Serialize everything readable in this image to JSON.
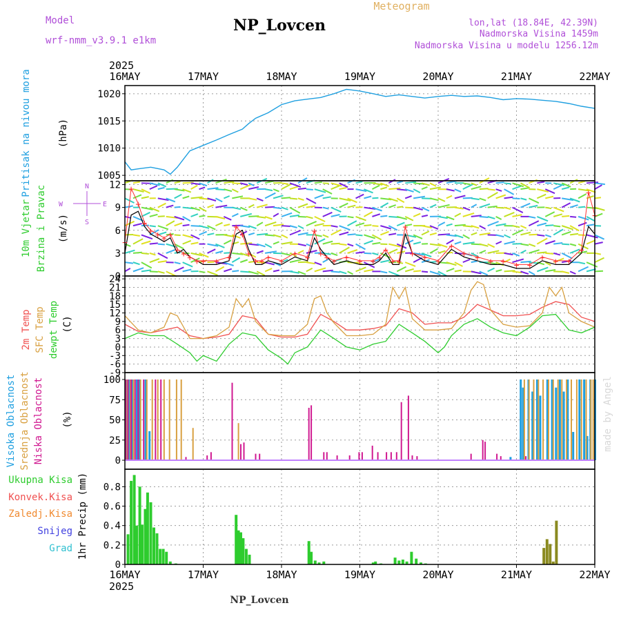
{
  "header": {
    "model_label": "Model",
    "model_name": "wrf-nmm_v3.9.1 e1km",
    "station": "NP_Lovcen",
    "product": "Meteogram",
    "coords": "lon,lat (18.84E, 42.39N)",
    "elevation": "Nadmorska Visina 1459m",
    "model_elevation": "Nadmorska Visina u modelu 1256.12m",
    "year_top": "2025",
    "year_bottom": "2025",
    "footer": "NP_Lovcen",
    "credit": "made by Angel"
  },
  "colors": {
    "pressure": "#1e9fe0",
    "green": "#2ecc2e",
    "orange": "#d8a040",
    "red": "#f05050",
    "magenta": "#d01890",
    "blue": "#4040e0",
    "cyan": "#30c0d0",
    "olive": "#8a8a20",
    "purple": "#b04fd8",
    "grid": "#9a9a9a"
  },
  "chart_data": [
    {
      "type": "line",
      "panel": "pressure",
      "ylabel": [
        "Pritisak na nivou mora",
        "(hPa)"
      ],
      "x_labels": [
        "16MAY",
        "17MAY",
        "18MAY",
        "19MAY",
        "20MAY",
        "21MAY",
        "22MAY"
      ],
      "ylim": [
        1004,
        1021.5
      ],
      "yticks": [
        1005,
        1010,
        1015,
        1020
      ],
      "grid": true,
      "series": [
        {
          "x_days": [
            0,
            0.08,
            0.17,
            0.33,
            0.5,
            0.58,
            0.67,
            0.83,
            1,
            1.17,
            1.33,
            1.5,
            1.58,
            1.67,
            1.83,
            2,
            2.17,
            2.33,
            2.5,
            2.67,
            2.83,
            3,
            3.17,
            3.33,
            3.5,
            3.67,
            3.83,
            4,
            4.17,
            4.33,
            4.5,
            4.67,
            4.83,
            5,
            5.17,
            5.33,
            5.5,
            5.67,
            5.83,
            6
          ],
          "values": [
            1007.5,
            1006,
            1006.2,
            1006.5,
            1006,
            1005.2,
            1006.5,
            1009.5,
            1010.5,
            1011.5,
            1012.5,
            1013.5,
            1014.5,
            1015.5,
            1016.5,
            1018,
            1018.7,
            1019,
            1019.3,
            1020,
            1020.8,
            1020.5,
            1020,
            1019.5,
            1019.8,
            1019.5,
            1019.2,
            1019.5,
            1019.7,
            1019.5,
            1019.6,
            1019.3,
            1018.9,
            1019.1,
            1019,
            1018.8,
            1018.6,
            1018.2,
            1017.7,
            1017.3
          ]
        }
      ]
    },
    {
      "type": "line",
      "panel": "wind",
      "ylabel": [
        "10m Vjetar",
        "Brzina i Pravac",
        "(m/s)"
      ],
      "compass": [
        "N",
        "E",
        "S",
        "W"
      ],
      "ylim": [
        0,
        12.5
      ],
      "yticks": [
        0,
        3,
        6,
        9,
        12
      ],
      "grid": true,
      "series": [
        {
          "x_days": [
            0,
            0.08,
            0.17,
            0.25,
            0.33,
            0.42,
            0.5,
            0.58,
            0.67,
            0.75,
            0.83,
            0.92,
            1,
            1.17,
            1.33,
            1.42,
            1.5,
            1.58,
            1.67,
            1.75,
            1.83,
            2,
            2.17,
            2.33,
            2.42,
            2.5,
            2.58,
            2.67,
            2.83,
            3,
            3.17,
            3.25,
            3.33,
            3.42,
            3.5,
            3.58,
            3.67,
            3.83,
            4,
            4.17,
            4.33,
            4.5,
            4.67,
            4.83,
            5,
            5.17,
            5.33,
            5.5,
            5.67,
            5.83,
            5.92,
            6
          ],
          "values": [
            3,
            8,
            8.5,
            6.5,
            5.5,
            5,
            4.5,
            5,
            3,
            3.5,
            2.5,
            2,
            1.5,
            1.5,
            2,
            5.5,
            6,
            3.5,
            1.5,
            1.5,
            2,
            1.5,
            2.5,
            2,
            5,
            3.5,
            2.5,
            1.5,
            2,
            1.5,
            1.5,
            2,
            3,
            1.5,
            1.5,
            5.5,
            3,
            2,
            1.5,
            3.5,
            2.5,
            2,
            1.5,
            1.5,
            1,
            1,
            2,
            1.5,
            1.5,
            3,
            6.5,
            5.5
          ]
        },
        {
          "x_days": [
            0,
            0.08,
            0.17,
            0.25,
            0.33,
            0.42,
            0.5,
            0.58,
            0.67,
            0.75,
            0.83,
            0.92,
            1,
            1.17,
            1.33,
            1.42,
            1.5,
            1.58,
            1.67,
            1.75,
            1.83,
            2,
            2.17,
            2.33,
            2.42,
            2.5,
            2.58,
            2.67,
            2.83,
            3,
            3.17,
            3.25,
            3.33,
            3.42,
            3.5,
            3.58,
            3.67,
            3.83,
            4,
            4.17,
            4.33,
            4.5,
            4.67,
            4.83,
            5,
            5.17,
            5.33,
            5.5,
            5.67,
            5.83,
            5.92,
            6
          ],
          "values": [
            4.5,
            11.5,
            9.5,
            7,
            6,
            5.5,
            5,
            5.5,
            3.5,
            3,
            2.5,
            2,
            2,
            2,
            2.5,
            6.5,
            5.5,
            3,
            2,
            2,
            2.5,
            2,
            3,
            2.5,
            6,
            3,
            2.5,
            2,
            2.5,
            2,
            2,
            2.5,
            3.5,
            2,
            2,
            6.5,
            3,
            2.5,
            2,
            4,
            3,
            2.5,
            2,
            2,
            1.5,
            1.5,
            2.5,
            2,
            2,
            3.5,
            11,
            8
          ]
        }
      ]
    },
    {
      "type": "line",
      "panel": "temperature",
      "ylabel": [
        "2m Temp",
        "SFC Temp",
        "dewpt Temp",
        "(C)"
      ],
      "ylim": [
        -9,
        25
      ],
      "yticks": [
        -9,
        -6,
        -3,
        0,
        3,
        6,
        9,
        12,
        15,
        18,
        21,
        24
      ],
      "grid": true,
      "series": [
        {
          "name": "2m Temp",
          "x_days": [
            0,
            0.17,
            0.33,
            0.5,
            0.67,
            0.83,
            1,
            1.17,
            1.33,
            1.5,
            1.67,
            1.83,
            2,
            2.17,
            2.33,
            2.5,
            2.67,
            2.83,
            3,
            3.17,
            3.33,
            3.5,
            3.67,
            3.83,
            4,
            4.17,
            4.33,
            4.5,
            4.67,
            4.83,
            5,
            5.17,
            5.33,
            5.5,
            5.67,
            5.83,
            6
          ],
          "values": [
            8,
            5.5,
            5,
            6,
            7,
            4,
            3,
            3.5,
            4.5,
            11,
            10,
            4.5,
            3.5,
            3.5,
            4.5,
            11.5,
            9,
            6,
            6,
            6.5,
            7.5,
            13.5,
            12,
            8,
            8.5,
            8.5,
            10.5,
            15,
            13,
            11,
            11,
            11.5,
            14,
            16,
            15,
            10.5,
            9
          ]
        },
        {
          "name": "SFC Temp",
          "x_days": [
            0,
            0.17,
            0.33,
            0.5,
            0.58,
            0.67,
            0.83,
            1,
            1.17,
            1.33,
            1.42,
            1.5,
            1.58,
            1.67,
            1.83,
            2,
            2.17,
            2.33,
            2.42,
            2.5,
            2.58,
            2.67,
            2.83,
            3,
            3.17,
            3.33,
            3.42,
            3.5,
            3.58,
            3.67,
            3.83,
            4,
            4.17,
            4.33,
            4.42,
            4.5,
            4.58,
            4.67,
            4.83,
            5,
            5.17,
            5.33,
            5.42,
            5.5,
            5.58,
            5.67,
            5.83,
            6
          ],
          "values": [
            11,
            6,
            5,
            7,
            12,
            11,
            3,
            3,
            4,
            7,
            17,
            14,
            17,
            9,
            4.5,
            4,
            4,
            8,
            17,
            18,
            12,
            8.5,
            4,
            4,
            4.5,
            8,
            21,
            17,
            21,
            10,
            6,
            6,
            6.5,
            12,
            20,
            23,
            22,
            13,
            8,
            7,
            7.5,
            12,
            21,
            18,
            21,
            12,
            9,
            7
          ]
        },
        {
          "name": "dewpt Temp",
          "x_days": [
            0,
            0.17,
            0.33,
            0.5,
            0.67,
            0.83,
            0.92,
            1,
            1.17,
            1.33,
            1.5,
            1.67,
            1.83,
            2,
            2.08,
            2.17,
            2.33,
            2.5,
            2.67,
            2.83,
            3,
            3.17,
            3.33,
            3.5,
            3.67,
            3.83,
            4,
            4.08,
            4.17,
            4.33,
            4.5,
            4.67,
            4.83,
            5,
            5.17,
            5.33,
            5.5,
            5.67,
            5.83,
            6
          ],
          "values": [
            3,
            5,
            4,
            4,
            1,
            -2,
            -5,
            -3,
            -5,
            1,
            5,
            4,
            -1,
            -4,
            -6,
            -2,
            0,
            6,
            3,
            0,
            -1,
            1,
            2,
            8,
            5,
            2,
            -2,
            0,
            4,
            8,
            10,
            7,
            5,
            4,
            7,
            11,
            11.5,
            6,
            5,
            7
          ]
        }
      ]
    },
    {
      "type": "bar",
      "panel": "cloud",
      "ylabel": [
        "Visoka Oblacnost",
        "Srednja Oblacnost",
        "Niska Oblacnost",
        "(%)"
      ],
      "ylim": [
        0,
        100
      ],
      "yticks": [
        0,
        25,
        50,
        75,
        100
      ],
      "grid": true,
      "series": [
        {
          "name": "Visoka Oblacnost",
          "x_days": [
            0.02,
            0.05,
            0.09,
            0.15,
            0.18,
            0.26,
            0.31,
            4.92,
            5.05,
            5.08,
            5.15,
            5.2,
            5.26,
            5.3,
            5.39,
            5.45,
            5.5,
            5.55,
            5.6,
            5.65,
            5.72,
            5.8,
            5.86,
            5.9,
            5.94,
            6
          ],
          "values": [
            100,
            100,
            100,
            100,
            100,
            100,
            36,
            4,
            100,
            90,
            100,
            85,
            100,
            80,
            100,
            100,
            90,
            100,
            85,
            100,
            35,
            100,
            100,
            30,
            100,
            100
          ]
        },
        {
          "name": "Srednja Oblacnost",
          "x_days": [
            0.03,
            0.07,
            0.11,
            0.2,
            0.28,
            0.35,
            0.42,
            0.5,
            0.57,
            0.66,
            0.72,
            0.87,
            1.45,
            5.1,
            5.16,
            5.22,
            5.28,
            5.34,
            5.41,
            5.47,
            5.53,
            5.58,
            5.64,
            5.7,
            5.77,
            5.83,
            5.89,
            5.95,
            5.98
          ],
          "values": [
            100,
            100,
            100,
            100,
            100,
            100,
            100,
            100,
            100,
            100,
            100,
            40,
            46,
            100,
            100,
            100,
            100,
            100,
            100,
            100,
            100,
            100,
            100,
            100,
            100,
            100,
            100,
            100,
            100
          ]
        },
        {
          "name": "Niska Oblacnost",
          "x_days": [
            0.01,
            0.04,
            0.08,
            0.13,
            0.17,
            0.24,
            0.39,
            0.46,
            0.78,
            1.05,
            1.1,
            1.37,
            1.48,
            1.52,
            1.67,
            1.72,
            2.35,
            2.38,
            2.54,
            2.58,
            2.71,
            2.87,
            2.99,
            3.03,
            3.16,
            3.23,
            3.34,
            3.4,
            3.47,
            3.53,
            3.62,
            3.67,
            3.73,
            4.42,
            4.57,
            4.6,
            4.75,
            4.8,
            5.12
          ],
          "values": [
            100,
            100,
            100,
            100,
            100,
            100,
            100,
            100,
            4,
            6,
            10,
            96,
            20,
            22,
            8,
            8,
            65,
            68,
            10,
            10,
            6,
            6,
            10,
            10,
            18,
            10,
            10,
            10,
            10,
            72,
            80,
            6,
            5,
            8,
            25,
            23,
            8,
            5,
            5
          ]
        }
      ]
    },
    {
      "type": "bar",
      "panel": "precip",
      "ylabel": [
        "1hr Precip (mm)"
      ],
      "legend": [
        "Ukupna Kisa",
        "Konvek.Kisa",
        "Zaledj.Kisa",
        "Snijeg",
        "Grad"
      ],
      "ylim": [
        0,
        0.98
      ],
      "yticks": [
        0,
        0.2,
        0.4,
        0.6,
        0.8
      ],
      "grid": true,
      "series": [
        {
          "name": "Ukupna Kisa",
          "x_days": [
            0.04,
            0.08,
            0.12,
            0.15,
            0.19,
            0.22,
            0.26,
            0.29,
            0.33,
            0.37,
            0.41,
            0.45,
            0.49,
            0.53,
            0.58,
            0.65,
            1.42,
            1.45,
            1.48,
            1.51,
            1.55,
            1.59,
            2.35,
            2.38,
            2.43,
            2.48,
            2.54,
            3.17,
            3.2,
            3.27,
            3.45,
            3.5,
            3.55,
            3.6,
            3.66,
            3.72,
            3.78,
            3.84
          ],
          "values": [
            0.31,
            0.86,
            0.92,
            0.4,
            0.8,
            0.41,
            0.57,
            0.74,
            0.64,
            0.38,
            0.32,
            0.16,
            0.16,
            0.13,
            0.03,
            0.01,
            0.51,
            0.35,
            0.33,
            0.27,
            0.16,
            0.1,
            0.24,
            0.13,
            0.04,
            0.02,
            0.03,
            0.02,
            0.03,
            0.01,
            0.07,
            0.04,
            0.05,
            0.03,
            0.13,
            0.06,
            0.02,
            0.01
          ]
        },
        {
          "name": "Zaledj.Kisa",
          "x_days": [
            5.35,
            5.39,
            5.43,
            5.47,
            5.51
          ],
          "values": [
            0.17,
            0.26,
            0.21,
            0.03,
            0.45
          ]
        }
      ]
    }
  ]
}
